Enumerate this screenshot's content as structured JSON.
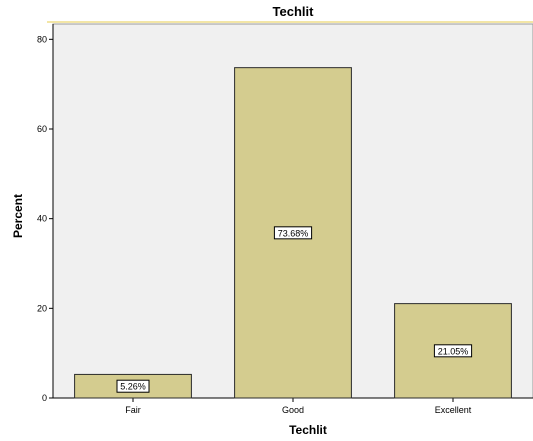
{
  "chart_data": {
    "type": "bar",
    "title": "Techlit",
    "xlabel": "Techlit",
    "ylabel": "Percent",
    "categories": [
      "Fair",
      "Good",
      "Excellent"
    ],
    "values": [
      5.26,
      73.68,
      21.05
    ],
    "data_labels": [
      "5.26%",
      "73.68%",
      "21.05%"
    ],
    "ylim": [
      0,
      83
    ],
    "yticks": [
      0,
      20,
      40,
      60,
      80
    ],
    "grid": false,
    "legend": "none",
    "colors": {
      "bar_fill": "#d4cc8f",
      "bar_stroke": "#2b2b2b",
      "plot_bg": "#f0f0f0",
      "frame_accent": "#f3e6a6"
    }
  }
}
